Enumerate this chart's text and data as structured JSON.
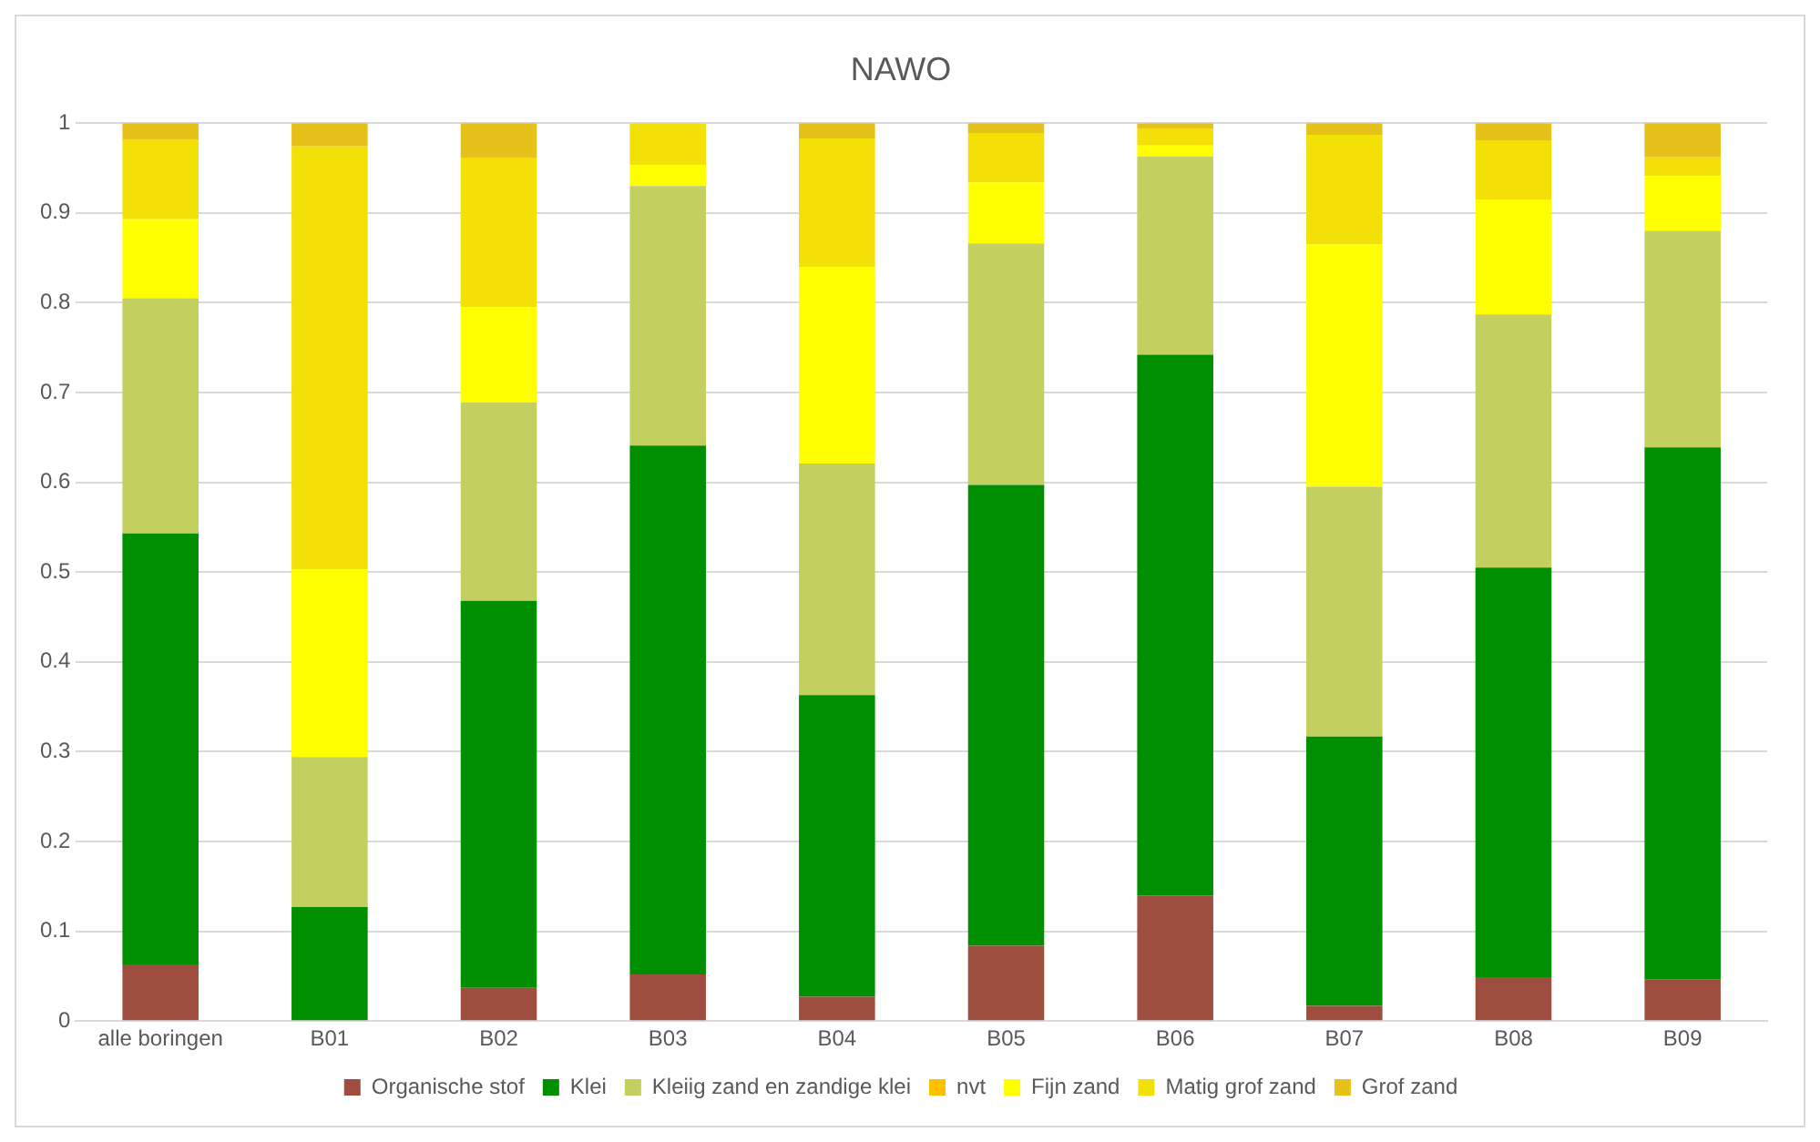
{
  "chart_data": {
    "type": "bar",
    "title": "NAWO",
    "stacked": true,
    "categories": [
      "alle boringen",
      "B01",
      "B02",
      "B03",
      "B04",
      "B05",
      "B06",
      "B07",
      "B08",
      "B09"
    ],
    "series": [
      {
        "name": "Organische stof",
        "color": "#9e4e3e",
        "values": [
          0.063,
          0,
          0.037,
          0.052,
          0.027,
          0.084,
          0.14,
          0.017,
          0.049,
          0.046
        ]
      },
      {
        "name": "Klei",
        "color": "#008f00",
        "values": [
          0.48,
          0.127,
          0.431,
          0.589,
          0.336,
          0.513,
          0.602,
          0.3,
          0.456,
          0.593
        ]
      },
      {
        "name": "Kleiig zand en zandige klei",
        "color": "#c3cf5f",
        "values": [
          0.262,
          0.167,
          0.221,
          0.289,
          0.258,
          0.269,
          0.221,
          0.278,
          0.282,
          0.241
        ]
      },
      {
        "name": "nvt",
        "color": "#ffc000",
        "values": [
          0,
          0,
          0,
          0,
          0,
          0,
          0,
          0,
          0,
          0
        ]
      },
      {
        "name": "Fijn zand",
        "color": "#ffff00",
        "values": [
          0.088,
          0.209,
          0.106,
          0.023,
          0.219,
          0.068,
          0.012,
          0.27,
          0.128,
          0.061
        ]
      },
      {
        "name": "Matig grof zand",
        "color": "#f2e006",
        "values": [
          0.089,
          0.471,
          0.166,
          0.047,
          0.143,
          0.055,
          0.019,
          0.122,
          0.066,
          0.021
        ]
      },
      {
        "name": "Grof zand",
        "color": "#e6c119",
        "values": [
          0.018,
          0.026,
          0.039,
          0,
          0.017,
          0.011,
          0.006,
          0.013,
          0.019,
          0.038
        ]
      }
    ],
    "ylim": [
      0,
      1
    ],
    "yticks": [
      0,
      0.1,
      0.2,
      0.3,
      0.4,
      0.5,
      0.6,
      0.7,
      0.8,
      0.9,
      1
    ],
    "grid": "y",
    "legend": "bottom"
  }
}
